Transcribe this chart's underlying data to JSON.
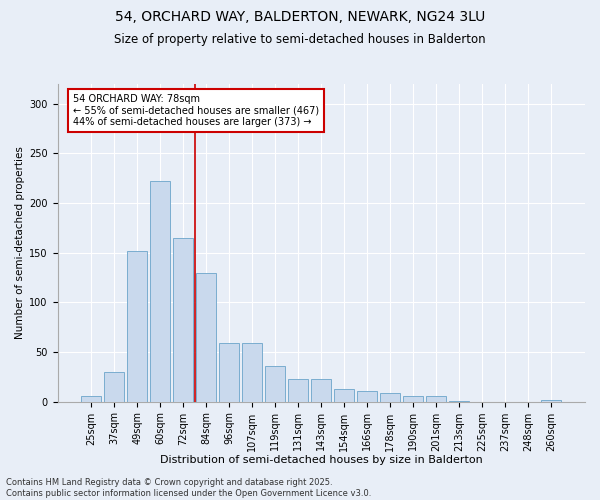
{
  "title": "54, ORCHARD WAY, BALDERTON, NEWARK, NG24 3LU",
  "subtitle": "Size of property relative to semi-detached houses in Balderton",
  "xlabel": "Distribution of semi-detached houses by size in Balderton",
  "ylabel": "Number of semi-detached properties",
  "categories": [
    "25sqm",
    "37sqm",
    "49sqm",
    "60sqm",
    "72sqm",
    "84sqm",
    "96sqm",
    "107sqm",
    "119sqm",
    "131sqm",
    "143sqm",
    "154sqm",
    "166sqm",
    "178sqm",
    "190sqm",
    "201sqm",
    "213sqm",
    "225sqm",
    "237sqm",
    "248sqm",
    "260sqm"
  ],
  "values": [
    6,
    30,
    152,
    222,
    165,
    130,
    59,
    59,
    36,
    23,
    23,
    13,
    11,
    9,
    6,
    6,
    1,
    0,
    0,
    0,
    2
  ],
  "bar_color": "#c9d9ed",
  "bar_edge_color": "#7aadcf",
  "vline_bin_index": 4,
  "annotation_text": "54 ORCHARD WAY: 78sqm\n← 55% of semi-detached houses are smaller (467)\n44% of semi-detached houses are larger (373) →",
  "footnote": "Contains HM Land Registry data © Crown copyright and database right 2025.\nContains public sector information licensed under the Open Government Licence v3.0.",
  "ylim": [
    0,
    320
  ],
  "yticks": [
    0,
    50,
    100,
    150,
    200,
    250,
    300
  ],
  "background_color": "#e8eef7",
  "title_fontsize": 10,
  "subtitle_fontsize": 8.5,
  "xlabel_fontsize": 8,
  "ylabel_fontsize": 7.5,
  "tick_fontsize": 7,
  "annotation_fontsize": 7,
  "footnote_fontsize": 6,
  "vline_color": "#cc0000",
  "annotation_box_color": "white",
  "annotation_box_edge": "#cc0000"
}
